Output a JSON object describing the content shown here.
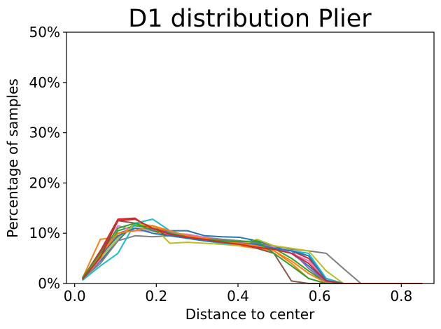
{
  "chart_data": {
    "type": "line",
    "title": "D1 distribution Plier",
    "xlabel": "Distance to center",
    "ylabel": "Percentage of samples",
    "xlim": [
      -0.02,
      0.88
    ],
    "ylim": [
      0,
      50
    ],
    "x_ticks": [
      0.0,
      0.2,
      0.4,
      0.6,
      0.8
    ],
    "x_tick_labels": [
      "0.0",
      "0.2",
      "0.4",
      "0.6",
      "0.8"
    ],
    "y_ticks": [
      0,
      10,
      20,
      30,
      40,
      50
    ],
    "y_tick_labels": [
      "0%",
      "10%",
      "20%",
      "30%",
      "40%",
      "50%"
    ],
    "grid": false,
    "legend": "none",
    "x": [
      0.02,
      0.063,
      0.106,
      0.148,
      0.191,
      0.233,
      0.276,
      0.318,
      0.361,
      0.403,
      0.446,
      0.488,
      0.531,
      0.573,
      0.616,
      0.658,
      0.701,
      0.743,
      0.786,
      0.828,
      0.85
    ],
    "series": [
      {
        "color": "#1f77b4",
        "values": [
          1.0,
          4.5,
          8.5,
          12.0,
          11.0,
          10.5,
          10.5,
          9.5,
          9.3,
          9.2,
          8.5,
          7.5,
          6.0,
          3.5,
          0.5,
          0,
          0,
          0,
          0,
          0,
          0
        ]
      },
      {
        "color": "#ff7f0e",
        "values": [
          1.2,
          8.8,
          9.2,
          12.0,
          11.5,
          10.0,
          9.0,
          8.5,
          8.0,
          7.5,
          7.0,
          6.5,
          4.0,
          1.0,
          0,
          0,
          0,
          0,
          0,
          0,
          0
        ]
      },
      {
        "color": "#2ca02c",
        "values": [
          0.8,
          5.0,
          10.5,
          11.5,
          11.0,
          10.0,
          9.5,
          9.0,
          8.8,
          8.5,
          8.2,
          7.0,
          5.0,
          2.5,
          0.2,
          0,
          0,
          0,
          0,
          0,
          0
        ]
      },
      {
        "color": "#d62728",
        "values": [
          1.1,
          6.5,
          12.8,
          13.0,
          10.5,
          9.5,
          9.0,
          8.8,
          8.5,
          8.0,
          7.5,
          7.0,
          6.5,
          5.0,
          1.0,
          0,
          0,
          0,
          0,
          0,
          0
        ]
      },
      {
        "color": "#9467bd",
        "values": [
          1.0,
          5.5,
          10.0,
          11.0,
          10.8,
          10.2,
          9.5,
          9.0,
          8.5,
          8.0,
          7.5,
          7.0,
          6.5,
          3.0,
          0.3,
          0,
          0,
          0,
          0,
          0,
          0
        ]
      },
      {
        "color": "#8c564b",
        "values": [
          1.3,
          6.0,
          12.5,
          12.0,
          11.0,
          10.0,
          9.5,
          9.0,
          8.5,
          8.0,
          7.0,
          6.0,
          0.5,
          0,
          0,
          0,
          0,
          0,
          0,
          0,
          0
        ]
      },
      {
        "color": "#e377c2",
        "values": [
          0.9,
          4.8,
          11.5,
          10.5,
          10.5,
          10.0,
          9.8,
          9.2,
          8.8,
          8.2,
          7.8,
          7.2,
          6.0,
          4.5,
          0.8,
          0,
          0,
          0,
          0,
          0,
          0
        ]
      },
      {
        "color": "#7f7f7f",
        "values": [
          1.0,
          4.0,
          8.5,
          9.5,
          9.3,
          9.5,
          9.3,
          9.0,
          8.8,
          8.5,
          8.0,
          7.5,
          6.8,
          6.5,
          6.0,
          3.0,
          0,
          0,
          0,
          0,
          0
        ]
      },
      {
        "color": "#bcbd22",
        "values": [
          1.2,
          5.0,
          9.0,
          11.8,
          11.5,
          8.0,
          8.2,
          8.0,
          7.8,
          7.5,
          8.8,
          7.5,
          7.0,
          6.5,
          2.5,
          0,
          0,
          0,
          0,
          0,
          0
        ]
      },
      {
        "color": "#17becf",
        "values": [
          0.7,
          3.5,
          6.0,
          12.0,
          12.8,
          10.5,
          9.0,
          8.5,
          8.0,
          7.8,
          7.5,
          7.0,
          6.5,
          6.0,
          1.0,
          0,
          0,
          0,
          0,
          0,
          0
        ]
      },
      {
        "color": "#1f77b4",
        "values": [
          1.1,
          5.5,
          9.5,
          11.0,
          10.0,
          9.5,
          9.0,
          8.5,
          8.2,
          8.0,
          7.8,
          7.0,
          6.5,
          5.5,
          0.6,
          0,
          0,
          0,
          0,
          0,
          0
        ]
      },
      {
        "color": "#ff7f0e",
        "values": [
          1.0,
          5.8,
          10.0,
          10.5,
          11.5,
          10.5,
          9.5,
          9.0,
          8.5,
          8.0,
          7.5,
          6.5,
          4.5,
          2.0,
          0.1,
          0,
          0,
          0,
          0,
          0,
          0
        ]
      },
      {
        "color": "#2ca02c",
        "values": [
          1.2,
          6.0,
          11.0,
          12.0,
          10.5,
          10.0,
          9.2,
          8.8,
          8.5,
          8.3,
          8.5,
          6.0,
          3.5,
          1.0,
          0,
          0,
          0,
          0,
          0,
          0,
          0
        ]
      },
      {
        "color": "#d62728",
        "values": [
          0.9,
          5.2,
          12.5,
          12.8,
          11.0,
          9.8,
          9.2,
          8.8,
          8.2,
          7.8,
          7.2,
          6.8,
          6.0,
          4.0,
          0.5,
          0,
          0,
          0,
          0,
          0,
          0
        ]
      }
    ]
  }
}
